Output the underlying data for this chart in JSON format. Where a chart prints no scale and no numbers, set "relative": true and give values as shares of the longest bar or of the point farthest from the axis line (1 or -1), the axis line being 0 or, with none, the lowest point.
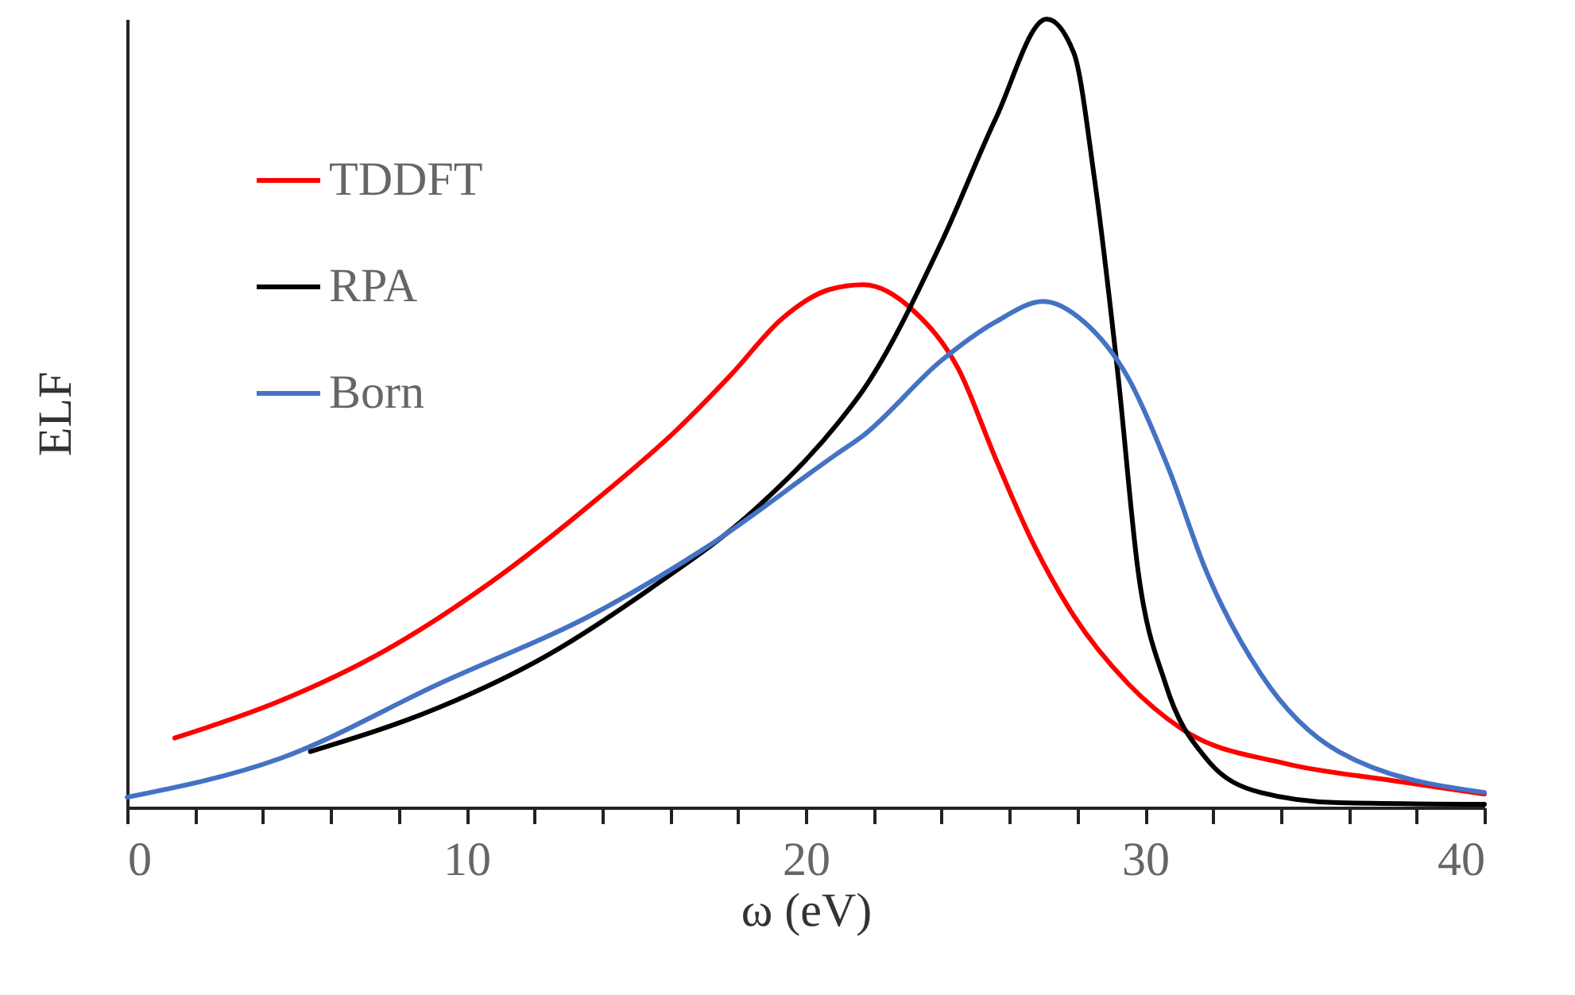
{
  "chart_data": {
    "type": "line",
    "relative": true,
    "xlabel": "ω (eV)",
    "ylabel": "ELF",
    "legend": "top left",
    "line_style": "solid",
    "marker": "none",
    "grid": false,
    "xlim": [
      0,
      40
    ],
    "xticks": [
      0,
      {
        "value": 2,
        "label": null
      },
      {
        "value": 4,
        "label": null
      },
      {
        "value": 6,
        "label": null
      },
      {
        "value": 8,
        "label": null
      },
      10,
      {
        "value": 12,
        "label": null
      },
      {
        "value": 14,
        "label": null
      },
      {
        "value": 16,
        "label": null
      },
      {
        "value": 18,
        "label": null
      },
      20,
      {
        "value": 22,
        "label": null
      },
      {
        "value": 24,
        "label": null
      },
      {
        "value": 26,
        "label": null
      },
      {
        "value": 28,
        "label": null
      },
      30,
      {
        "value": 32,
        "label": null
      },
      {
        "value": 34,
        "label": null
      },
      {
        "value": 36,
        "label": null
      },
      {
        "value": 38,
        "label": null
      },
      40
    ],
    "series": [
      {
        "name": "TDDFT",
        "color": "#ff0000",
        "x": [
          1.4,
          4.5,
          7.6,
          10.7,
          13.9,
          16.2,
          17.8,
          19.3,
          20.7,
          21.7,
          23.2,
          24.5,
          25.6,
          26.7,
          27.9,
          29.5,
          31.1,
          34.1,
          37.3,
          40.0
        ],
        "values": [
          0.088,
          0.135,
          0.199,
          0.285,
          0.393,
          0.479,
          0.549,
          0.62,
          0.657,
          0.663,
          0.629,
          0.556,
          0.442,
          0.335,
          0.243,
          0.157,
          0.099,
          0.056,
          0.034,
          0.017
        ]
      },
      {
        "name": "RPA",
        "color": "#000000",
        "x": [
          5.4,
          9.2,
          12.3,
          15.4,
          18.5,
          20.9,
          21.7,
          24.0,
          25.6,
          27.1,
          27.9,
          28.5,
          29.2,
          29.8,
          30.6,
          31.8,
          33.4,
          35.7,
          40.0
        ],
        "values": [
          0.071,
          0.127,
          0.191,
          0.277,
          0.378,
          0.485,
          0.53,
          0.717,
          0.874,
          1,
          0.957,
          0.8,
          0.549,
          0.298,
          0.157,
          0.062,
          0.019,
          0.006,
          0.004
        ]
      },
      {
        "name": "Born",
        "color": "#4472c4",
        "x": [
          0,
          4.5,
          9.2,
          13.9,
          17.0,
          20.9,
          21.7,
          24.0,
          25.6,
          27.0,
          28.2,
          29.5,
          30.7,
          31.8,
          33.4,
          35.7,
          40.0
        ],
        "values": [
          0.013,
          0.062,
          0.157,
          0.249,
          0.328,
          0.448,
          0.472,
          0.567,
          0.616,
          0.642,
          0.616,
          0.545,
          0.429,
          0.3,
          0.17,
          0.071,
          0.019
        ]
      }
    ]
  }
}
